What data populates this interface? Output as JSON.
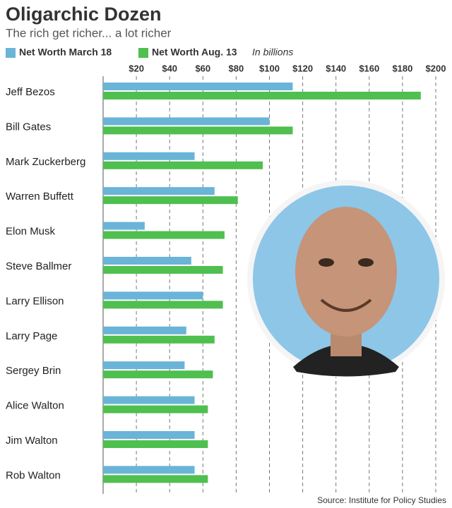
{
  "chart_data": {
    "type": "hbar",
    "title": "Oligarchic Dozen",
    "subtitle": "The rich get richer... a lot richer",
    "annotation": "In billions",
    "source": "Source: Institute for Policy Studies",
    "categories": [
      "Jeff Bezos",
      "Bill Gates",
      "Mark Zuckerberg",
      "Warren Buffett",
      "Elon Musk",
      "Steve Ballmer",
      "Larry Ellison",
      "Larry Page",
      "Sergey Brin",
      "Alice Walton",
      "Jim Walton",
      "Rob Walton"
    ],
    "series": [
      {
        "name": "Net Worth March 18",
        "color": "#6ab4d8",
        "values": [
          114,
          100,
          55,
          67,
          25,
          53,
          60,
          50,
          49,
          55,
          55,
          55
        ]
      },
      {
        "name": "Net Worth Aug. 13",
        "color": "#4fbf4f",
        "values": [
          191,
          114,
          96,
          81,
          73,
          72,
          72,
          67,
          66,
          63,
          63,
          63
        ]
      }
    ],
    "xlim": [
      0,
      200
    ],
    "xticks": [
      {
        "value": 20,
        "label": "$20"
      },
      {
        "value": 40,
        "label": "$40"
      },
      {
        "value": 60,
        "label": "$60"
      },
      {
        "value": 80,
        "label": "$80"
      },
      {
        "value": 100,
        "label": "$100"
      },
      {
        "value": 120,
        "label": "$120"
      },
      {
        "value": 140,
        "label": "$140"
      },
      {
        "value": 160,
        "label": "$160"
      },
      {
        "value": 180,
        "label": "$180"
      },
      {
        "value": 200,
        "label": "$200"
      }
    ],
    "grid": true
  }
}
